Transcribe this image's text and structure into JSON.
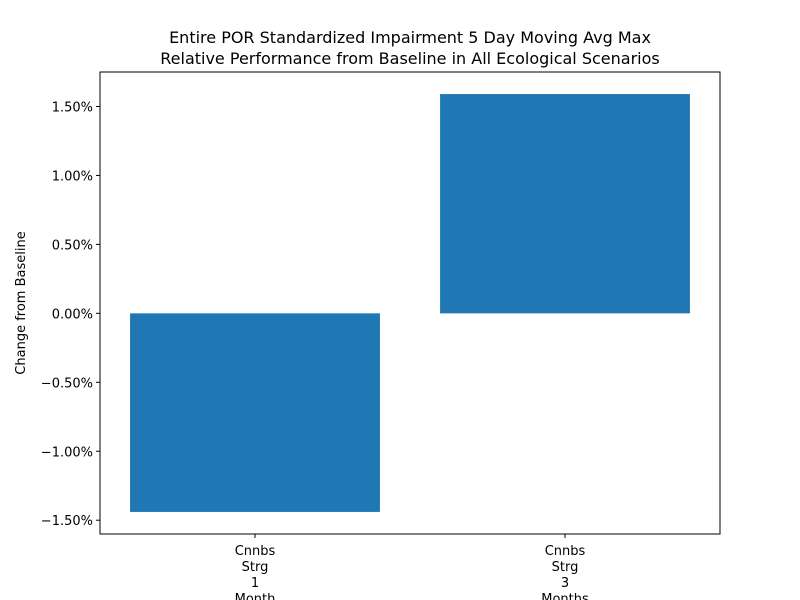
{
  "chart_data": {
    "type": "bar",
    "title": "Entire POR Standardized Impairment 5 Day Moving Avg Max",
    "subtitle": "Relative Performance from Baseline in All Ecological Scenarios",
    "xlabel": "",
    "ylabel": "Change from Baseline",
    "categories": [
      [
        "Cnnbs",
        "Strg",
        "1",
        "Month"
      ],
      [
        "Cnnbs",
        "Strg",
        "3",
        "Months"
      ]
    ],
    "values": [
      -0.0144,
      0.0159
    ],
    "ylim": [
      -0.016,
      0.0175
    ],
    "yticks": [
      -0.015,
      -0.01,
      -0.005,
      0.0,
      0.005,
      0.01,
      0.015
    ],
    "ytick_labels": [
      "−1.50%",
      "−1.00%",
      "−0.50%",
      "0.00%",
      "0.50%",
      "1.00%",
      "1.50%"
    ],
    "bar_color": "#1f77b4",
    "grid": false,
    "legend": false
  }
}
